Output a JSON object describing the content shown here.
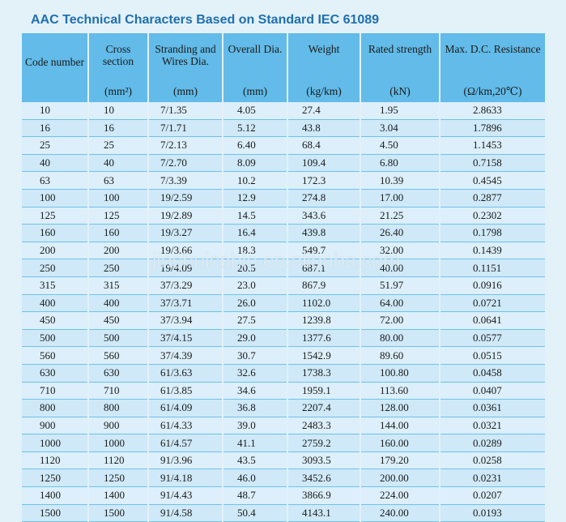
{
  "title": "AAC Technical Characters Based on Standard IEC 61089",
  "columns": [
    {
      "name": "Code number",
      "unit": ""
    },
    {
      "name": "Cross section",
      "unit": "(mm²)"
    },
    {
      "name": "Stranding and Wires Dia.",
      "unit": "(mm)"
    },
    {
      "name": "Overall Dia.",
      "unit": "(mm)"
    },
    {
      "name": "Weight",
      "unit": "(kg/km)"
    },
    {
      "name": "Rated strength",
      "unit": "(kN)"
    },
    {
      "name": "Max. D.C. Resistance",
      "unit": "(Ω/km,20℃)"
    }
  ],
  "rows": [
    [
      "10",
      "10",
      "7/1.35",
      "4.05",
      "27.4",
      "1.95",
      "2.8633"
    ],
    [
      "16",
      "16",
      "7/1.71",
      "5.12",
      "43.8",
      "3.04",
      "1.7896"
    ],
    [
      "25",
      "25",
      "7/2.13",
      "6.40",
      "68.4",
      "4.50",
      "1.1453"
    ],
    [
      "40",
      "40",
      "7/2.70",
      "8.09",
      "109.4",
      "6.80",
      "0.7158"
    ],
    [
      "63",
      "63",
      "7/3.39",
      "10.2",
      "172.3",
      "10.39",
      "0.4545"
    ],
    [
      "100",
      "100",
      "19/2.59",
      "12.9",
      "274.8",
      "17.00",
      "0.2877"
    ],
    [
      "125",
      "125",
      "19/2.89",
      "14.5",
      "343.6",
      "21.25",
      "0.2302"
    ],
    [
      "160",
      "160",
      "19/3.27",
      "16.4",
      "439.8",
      "26.40",
      "0.1798"
    ],
    [
      "200",
      "200",
      "19/3.66",
      "18.3",
      "549.7",
      "32.00",
      "0.1439"
    ],
    [
      "250",
      "250",
      "19/4.09",
      "20.5",
      "687.1",
      "40.00",
      "0.1151"
    ],
    [
      "315",
      "315",
      "37/3.29",
      "23.0",
      "867.9",
      "51.97",
      "0.0916"
    ],
    [
      "400",
      "400",
      "37/3.71",
      "26.0",
      "1102.0",
      "64.00",
      "0.0721"
    ],
    [
      "450",
      "450",
      "37/3.94",
      "27.5",
      "1239.8",
      "72.00",
      "0.0641"
    ],
    [
      "500",
      "500",
      "37/4.15",
      "29.0",
      "1377.6",
      "80.00",
      "0.0577"
    ],
    [
      "560",
      "560",
      "37/4.39",
      "30.7",
      "1542.9",
      "89.60",
      "0.0515"
    ],
    [
      "630",
      "630",
      "61/3.63",
      "32.6",
      "1738.3",
      "100.80",
      "0.0458"
    ],
    [
      "710",
      "710",
      "61/3.85",
      "34.6",
      "1959.1",
      "113.60",
      "0.0407"
    ],
    [
      "800",
      "800",
      "61/4.09",
      "36.8",
      "2207.4",
      "128.00",
      "0.0361"
    ],
    [
      "900",
      "900",
      "61/4.33",
      "39.0",
      "2483.3",
      "144.00",
      "0.0321"
    ],
    [
      "1000",
      "1000",
      "61/4.57",
      "41.1",
      "2759.2",
      "160.00",
      "0.0289"
    ],
    [
      "1120",
      "1120",
      "91/3.96",
      "43.5",
      "3093.5",
      "179.20",
      "0.0258"
    ],
    [
      "1250",
      "1250",
      "91/4.18",
      "46.0",
      "3452.6",
      "200.00",
      "0.0231"
    ],
    [
      "1400",
      "1400",
      "91/4.43",
      "48.7",
      "3866.9",
      "224.00",
      "0.0207"
    ],
    [
      "1500",
      "1500",
      "91/4.58",
      "50.4",
      "4143.1",
      "240.00",
      "0.0193"
    ]
  ],
  "watermark": "jinshuicable.en.alibaba.com"
}
